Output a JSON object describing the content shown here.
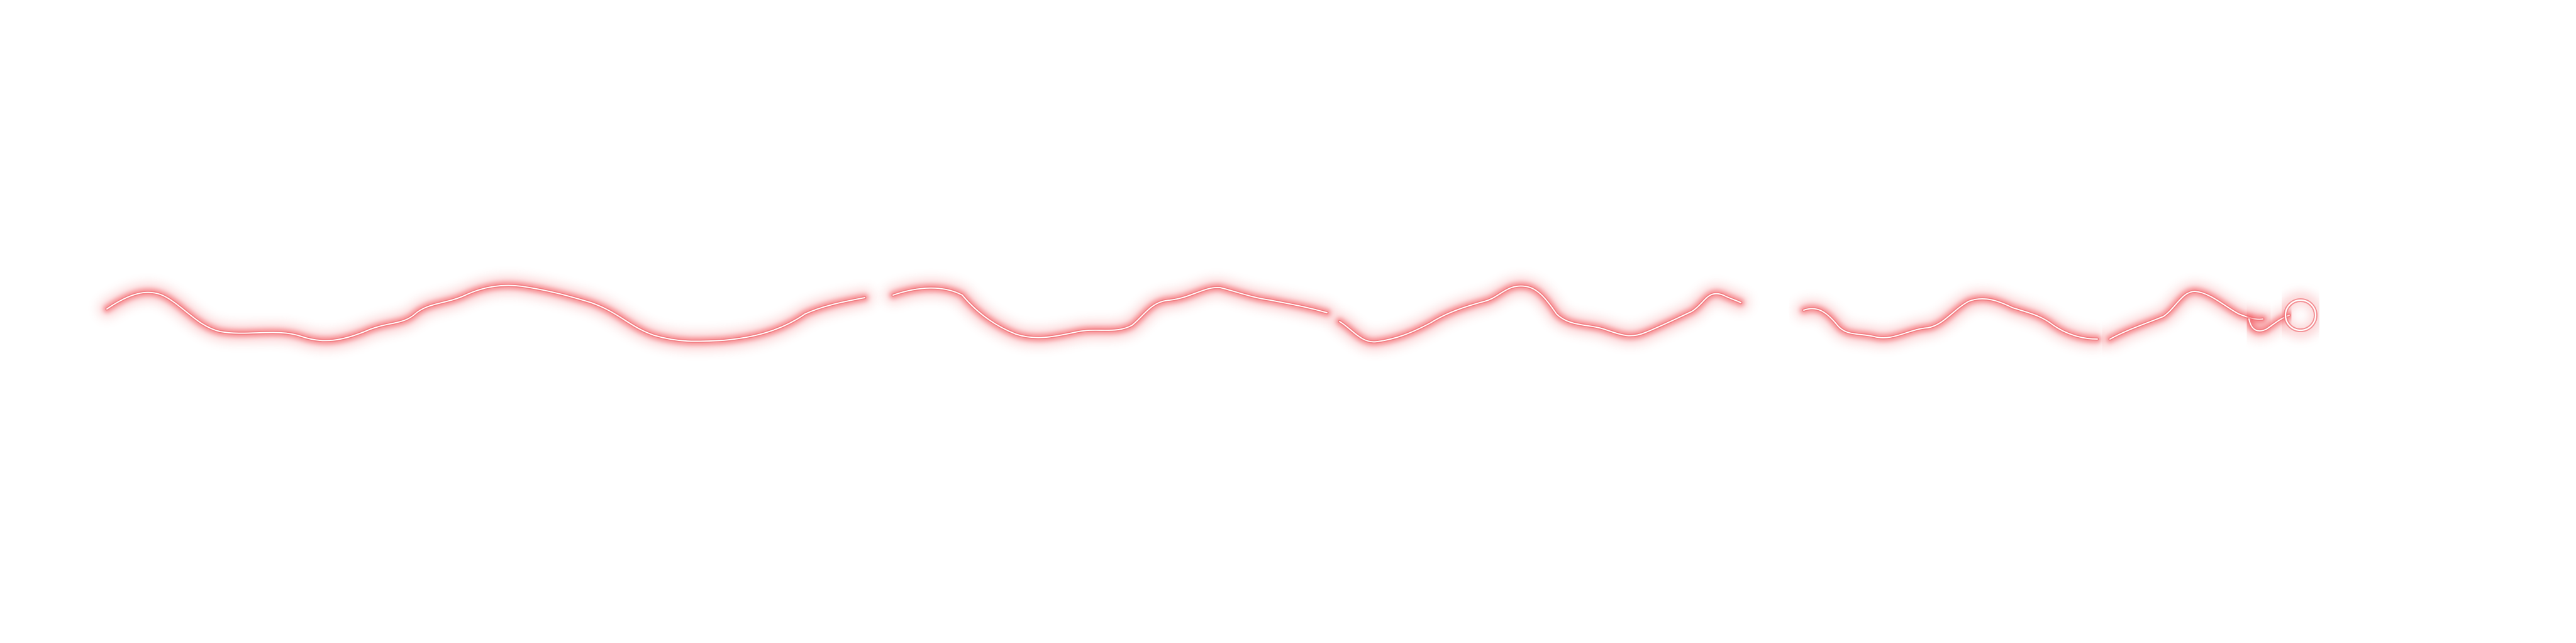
{
  "canvas": {
    "background": "#ffffff"
  },
  "trail": {
    "glow_color": "#f2555c",
    "core_color": "#ffffff",
    "segment_count": 6,
    "end_marker": "ring-endpoint"
  }
}
